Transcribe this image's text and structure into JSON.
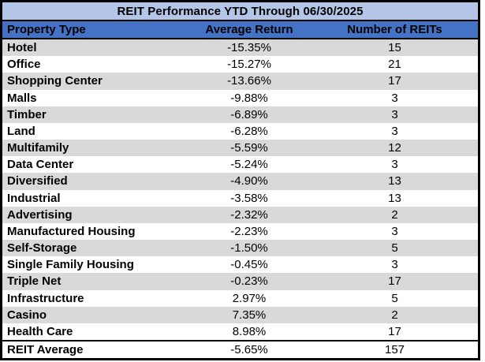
{
  "table": {
    "title": "REIT Performance YTD Through 06/30/2025",
    "headers": [
      "Property Type",
      "Average Return",
      "Number of REITs"
    ],
    "rows": [
      [
        "Hotel",
        "-15.35%",
        "15"
      ],
      [
        "Office",
        "-15.27%",
        "21"
      ],
      [
        "Shopping Center",
        "-13.66%",
        "17"
      ],
      [
        "Malls",
        "-9.88%",
        "3"
      ],
      [
        "Timber",
        "-6.89%",
        "3"
      ],
      [
        "Land",
        "-6.28%",
        "3"
      ],
      [
        "Multifamily",
        "-5.59%",
        "12"
      ],
      [
        "Data Center",
        "-5.24%",
        "3"
      ],
      [
        "Diversified",
        "-4.90%",
        "13"
      ],
      [
        "Industrial",
        "-3.58%",
        "13"
      ],
      [
        "Advertising",
        "-2.32%",
        "2"
      ],
      [
        "Manufactured Housing",
        "-2.23%",
        "3"
      ],
      [
        "Self-Storage",
        "-1.50%",
        "5"
      ],
      [
        "Single Family Housing",
        "-0.45%",
        "3"
      ],
      [
        "Triple Net",
        "-0.23%",
        "17"
      ],
      [
        "Infrastructure",
        "2.97%",
        "5"
      ],
      [
        "Casino",
        "7.35%",
        "2"
      ],
      [
        "Health Care",
        "8.98%",
        "17"
      ]
    ],
    "summary_row": [
      "REIT Average",
      "-5.65%",
      "157"
    ]
  },
  "colors": {
    "title_background": "#B4C6E7",
    "header_background": "#4472C4",
    "alt_row_background": "#D9D9D9",
    "row_background": "#FFFFFF",
    "text": "#000000",
    "border": "#000000"
  },
  "chart_data": {
    "type": "table",
    "title": "REIT Performance YTD Through 06/30/2025",
    "columns": [
      "Property Type",
      "Average Return (%)",
      "Number of REITs"
    ],
    "rows": [
      [
        "Hotel",
        -15.35,
        15
      ],
      [
        "Office",
        -15.27,
        21
      ],
      [
        "Shopping Center",
        -13.66,
        17
      ],
      [
        "Malls",
        -9.88,
        3
      ],
      [
        "Timber",
        -6.89,
        3
      ],
      [
        "Land",
        -6.28,
        3
      ],
      [
        "Multifamily",
        -5.59,
        12
      ],
      [
        "Data Center",
        -5.24,
        3
      ],
      [
        "Diversified",
        -4.9,
        13
      ],
      [
        "Industrial",
        -3.58,
        13
      ],
      [
        "Advertising",
        -2.32,
        2
      ],
      [
        "Manufactured Housing",
        -2.23,
        3
      ],
      [
        "Self-Storage",
        -1.5,
        5
      ],
      [
        "Single Family Housing",
        -0.45,
        3
      ],
      [
        "Triple Net",
        -0.23,
        17
      ],
      [
        "Infrastructure",
        2.97,
        5
      ],
      [
        "Casino",
        7.35,
        2
      ],
      [
        "Health Care",
        8.98,
        17
      ],
      [
        "REIT Average",
        -5.65,
        157
      ]
    ]
  }
}
